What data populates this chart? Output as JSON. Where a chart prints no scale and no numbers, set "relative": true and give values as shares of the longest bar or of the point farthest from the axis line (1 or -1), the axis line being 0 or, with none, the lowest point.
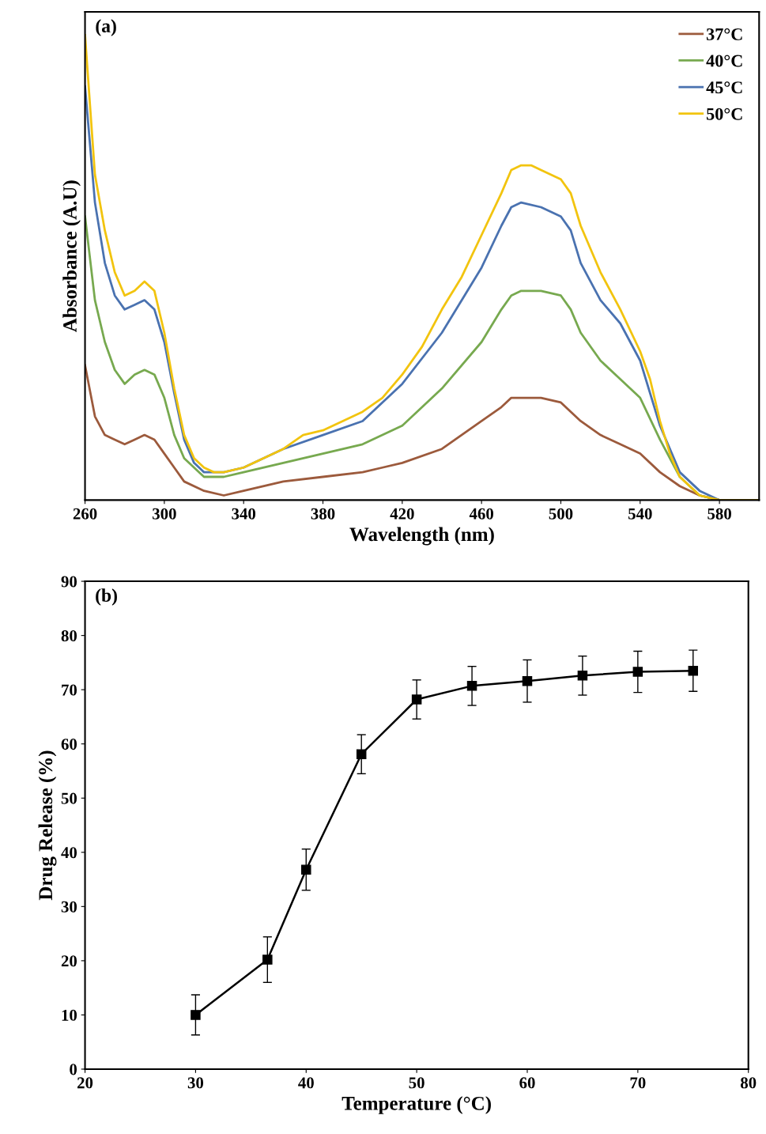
{
  "chart_data": [
    {
      "type": "line",
      "xlabel": "Wavelength (nm)",
      "ylabel": "Absorbance (A.U)",
      "annotations": [
        "(a)"
      ],
      "relative": true,
      "xlim": [
        260,
        600
      ],
      "xticks": [
        260,
        300,
        340,
        380,
        420,
        460,
        500,
        540,
        580
      ],
      "legend": "top right",
      "grid": false,
      "marker": "none",
      "line_style": "solid",
      "series": [
        {
          "name": "37°C",
          "color": "#9c5a3c",
          "x": [
            260,
            265,
            270,
            275,
            280,
            285,
            290,
            295,
            300,
            305,
            310,
            320,
            330,
            340,
            360,
            380,
            400,
            410,
            420,
            440,
            460,
            470,
            475,
            480,
            490,
            500,
            505,
            510,
            520,
            530,
            540,
            550,
            560,
            570,
            580,
            600
          ],
          "values": [
            0.29,
            0.18,
            0.14,
            0.13,
            0.12,
            0.13,
            0.14,
            0.13,
            0.1,
            0.07,
            0.04,
            0.02,
            0.01,
            0.02,
            0.04,
            0.05,
            0.06,
            0.07,
            0.08,
            0.11,
            0.17,
            0.2,
            0.22,
            0.22,
            0.22,
            0.21,
            0.19,
            0.17,
            0.14,
            0.12,
            0.1,
            0.06,
            0.03,
            0.01,
            0.0,
            0.0
          ]
        },
        {
          "name": "40°C",
          "color": "#77a94f",
          "x": [
            260,
            265,
            270,
            275,
            280,
            285,
            290,
            295,
            300,
            305,
            310,
            320,
            330,
            340,
            360,
            380,
            400,
            410,
            420,
            440,
            460,
            470,
            475,
            480,
            490,
            500,
            505,
            510,
            520,
            530,
            540,
            550,
            560,
            570,
            580,
            600
          ],
          "values": [
            0.61,
            0.43,
            0.34,
            0.28,
            0.25,
            0.27,
            0.28,
            0.27,
            0.22,
            0.14,
            0.09,
            0.05,
            0.05,
            0.06,
            0.08,
            0.1,
            0.12,
            0.14,
            0.16,
            0.24,
            0.34,
            0.41,
            0.44,
            0.45,
            0.45,
            0.44,
            0.41,
            0.36,
            0.3,
            0.26,
            0.22,
            0.13,
            0.05,
            0.01,
            0.0,
            0.0
          ]
        },
        {
          "name": "45°C",
          "color": "#4a72b0",
          "x": [
            260,
            265,
            270,
            275,
            280,
            285,
            290,
            295,
            300,
            305,
            310,
            315,
            320,
            330,
            340,
            360,
            380,
            400,
            410,
            420,
            440,
            460,
            470,
            475,
            480,
            490,
            500,
            505,
            510,
            520,
            530,
            540,
            550,
            560,
            570,
            580,
            600
          ],
          "values": [
            0.89,
            0.64,
            0.51,
            0.44,
            0.41,
            0.42,
            0.43,
            0.41,
            0.34,
            0.23,
            0.13,
            0.08,
            0.06,
            0.06,
            0.07,
            0.11,
            0.14,
            0.17,
            0.21,
            0.25,
            0.36,
            0.5,
            0.59,
            0.63,
            0.64,
            0.63,
            0.61,
            0.58,
            0.51,
            0.43,
            0.38,
            0.3,
            0.16,
            0.06,
            0.02,
            0.0,
            0.0
          ]
        },
        {
          "name": "50°C",
          "color": "#f2c40f",
          "x": [
            260,
            265,
            270,
            275,
            280,
            285,
            290,
            295,
            300,
            305,
            310,
            315,
            320,
            325,
            330,
            340,
            350,
            360,
            370,
            380,
            390,
            400,
            410,
            420,
            430,
            440,
            450,
            460,
            470,
            475,
            480,
            485,
            490,
            500,
            505,
            510,
            520,
            530,
            540,
            545,
            550,
            555,
            560,
            570,
            580,
            600
          ],
          "values": [
            1.0,
            0.7,
            0.58,
            0.49,
            0.44,
            0.45,
            0.47,
            0.45,
            0.36,
            0.24,
            0.14,
            0.09,
            0.07,
            0.06,
            0.06,
            0.07,
            0.09,
            0.11,
            0.14,
            0.15,
            0.17,
            0.19,
            0.22,
            0.27,
            0.33,
            0.41,
            0.48,
            0.57,
            0.66,
            0.71,
            0.72,
            0.72,
            0.71,
            0.69,
            0.66,
            0.59,
            0.49,
            0.41,
            0.32,
            0.26,
            0.17,
            0.1,
            0.05,
            0.01,
            0.0,
            0.0
          ]
        }
      ]
    },
    {
      "type": "line",
      "xlabel": "Temperature (°C)",
      "ylabel": "Drug Release (%)",
      "annotations": [
        "(b)"
      ],
      "xlim": [
        20,
        80
      ],
      "xticks": [
        20,
        30,
        40,
        50,
        60,
        70,
        80
      ],
      "ylim": [
        0,
        90
      ],
      "yticks": [
        0,
        10,
        20,
        30,
        40,
        50,
        60,
        70,
        80,
        90
      ],
      "grid": false,
      "marker": "square",
      "line_style": "solid",
      "series": [
        {
          "color": "#000000",
          "x": [
            30,
            36.5,
            40,
            45,
            50,
            55,
            60,
            65,
            70,
            75
          ],
          "values": [
            10.0,
            20.2,
            36.8,
            58.1,
            68.2,
            70.7,
            71.6,
            72.6,
            73.3,
            73.5
          ],
          "errors": [
            3.7,
            4.2,
            3.8,
            3.6,
            3.6,
            3.6,
            3.9,
            3.6,
            3.8,
            3.8
          ]
        }
      ]
    }
  ]
}
